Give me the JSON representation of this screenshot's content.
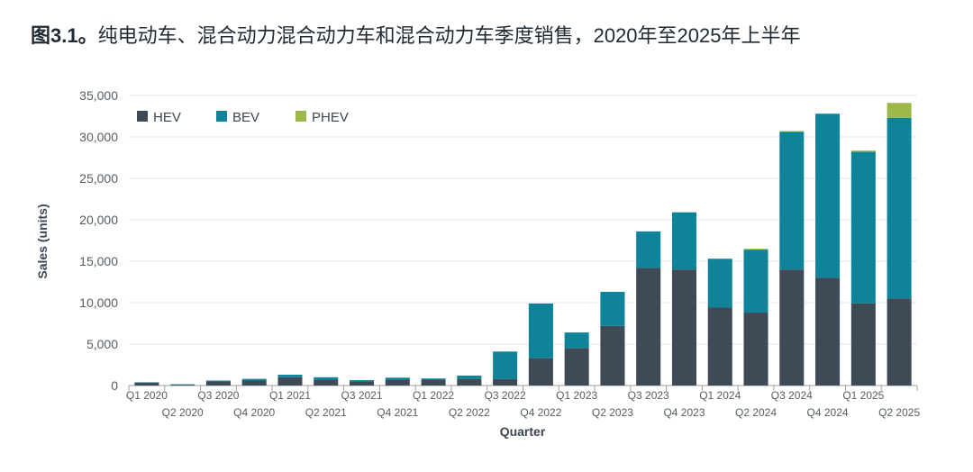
{
  "title": {
    "lead": "图3.1。",
    "text": "纯电动车、混合动力混合动力车和混合动力车季度销售，2020年至2025年上半年"
  },
  "chart_data": {
    "type": "bar",
    "stacked": true,
    "title": "图3.1。纯电动车、混合动力混合动力车和混合动力车季度销售，2020年至2025年上半年",
    "xlabel": "Quarter",
    "ylabel": "Sales (units)",
    "ylim": [
      0,
      35000
    ],
    "yticks": [
      0,
      5000,
      10000,
      15000,
      20000,
      25000,
      30000,
      35000
    ],
    "ytick_labels": [
      "0",
      "5,000",
      "10,000",
      "15,000",
      "20,000",
      "25,000",
      "30,000",
      "35,000"
    ],
    "legend_position": "top-left",
    "categories": [
      "Q1 2020",
      "Q2 2020",
      "Q3 2020",
      "Q4 2020",
      "Q1 2021",
      "Q2 2021",
      "Q3 2021",
      "Q4 2021",
      "Q1 2022",
      "Q2 2022",
      "Q3 2022",
      "Q4 2022",
      "Q1 2023",
      "Q2 2023",
      "Q3 2023",
      "Q4 2023",
      "Q1 2024",
      "Q2 2024",
      "Q3 2024",
      "Q4 2024",
      "Q1 2025",
      "Q2 2025"
    ],
    "series": [
      {
        "name": "HEV",
        "color": "#3e4a55",
        "values": [
          350,
          100,
          500,
          600,
          1000,
          700,
          500,
          700,
          700,
          800,
          800,
          3300,
          4500,
          7200,
          14200,
          14000,
          9400,
          8800,
          14000,
          13000,
          9900,
          10500
        ]
      },
      {
        "name": "BEV",
        "color": "#0e8399",
        "values": [
          50,
          50,
          100,
          200,
          300,
          300,
          150,
          250,
          150,
          400,
          3300,
          6600,
          1900,
          4100,
          4400,
          6900,
          5900,
          7600,
          16600,
          19800,
          18300,
          21800
        ]
      },
      {
        "name": "PHEV",
        "color": "#9cb848",
        "values": [
          0,
          0,
          0,
          0,
          0,
          0,
          0,
          0,
          0,
          0,
          0,
          0,
          0,
          0,
          0,
          0,
          0,
          100,
          100,
          0,
          150,
          1800
        ]
      }
    ]
  }
}
